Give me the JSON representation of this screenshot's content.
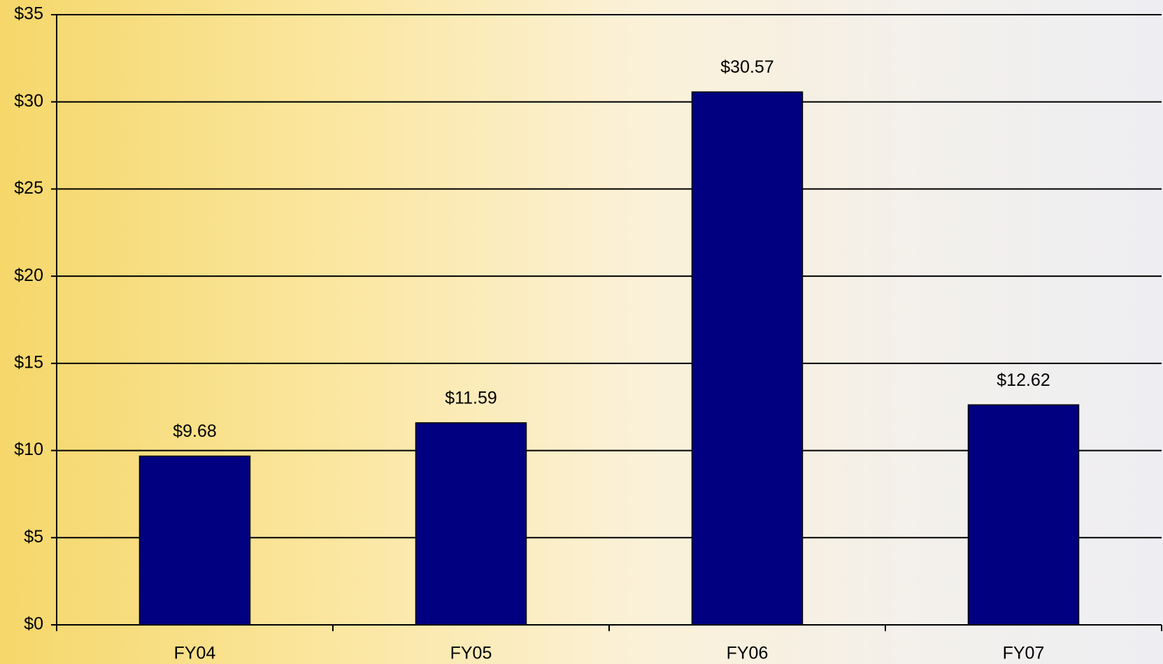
{
  "chart_data": {
    "type": "bar",
    "categories": [
      "FY04",
      "FY05",
      "FY06",
      "FY07"
    ],
    "values": [
      9.68,
      11.59,
      30.57,
      12.62
    ],
    "value_labels": [
      "$9.68",
      "$11.59",
      "$30.57",
      "$12.62"
    ],
    "color": "#000080",
    "ylim": [
      0,
      35
    ],
    "yticks": [
      {
        "value": 0,
        "label": "$0"
      },
      {
        "value": 5,
        "label": "$5"
      },
      {
        "value": 10,
        "label": "$10"
      },
      {
        "value": 15,
        "label": "$15"
      },
      {
        "value": 20,
        "label": "$20"
      },
      {
        "value": 25,
        "label": "$25"
      },
      {
        "value": 30,
        "label": "$30"
      },
      {
        "value": 35,
        "label": "$35"
      }
    ],
    "grid": true
  }
}
